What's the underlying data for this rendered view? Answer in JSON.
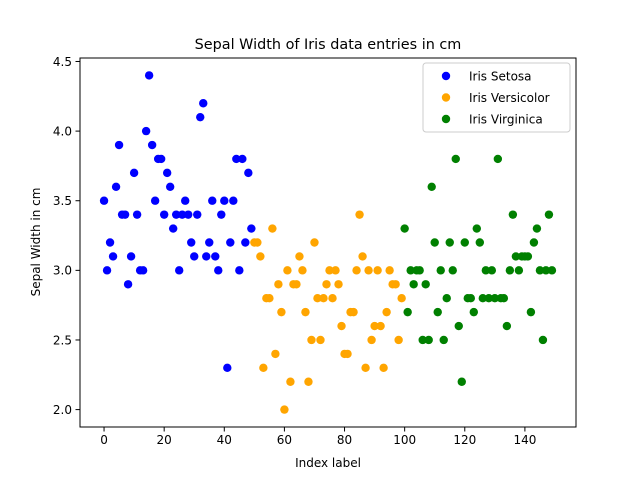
{
  "chart_data": {
    "type": "scatter",
    "title": "Sepal Width of Iris data entries in cm",
    "xlabel": "Index label",
    "ylabel": "Sepal Width in cm",
    "xlim": [
      -8,
      157
    ],
    "ylim": [
      1.875,
      4.525
    ],
    "xticks": [
      0,
      20,
      40,
      60,
      80,
      100,
      120,
      140
    ],
    "yticks": [
      2.0,
      2.5,
      3.0,
      3.5,
      4.0,
      4.5
    ],
    "ytick_labels": [
      "2.0",
      "2.5",
      "3.0",
      "3.5",
      "4.0",
      "4.5"
    ],
    "legend_position": "top-right",
    "grid": false,
    "series": [
      {
        "name": "Iris Setosa",
        "color": "#0000ff",
        "x": [
          0,
          1,
          2,
          3,
          4,
          5,
          6,
          7,
          8,
          9,
          10,
          11,
          12,
          13,
          14,
          15,
          16,
          17,
          18,
          19,
          20,
          21,
          22,
          23,
          24,
          25,
          26,
          27,
          28,
          29,
          30,
          31,
          32,
          33,
          34,
          35,
          36,
          37,
          38,
          39,
          40,
          41,
          42,
          43,
          44,
          45,
          46,
          47,
          48,
          49
        ],
        "y": [
          3.5,
          3.0,
          3.2,
          3.1,
          3.6,
          3.9,
          3.4,
          3.4,
          2.9,
          3.1,
          3.7,
          3.4,
          3.0,
          3.0,
          4.0,
          4.4,
          3.9,
          3.5,
          3.8,
          3.8,
          3.4,
          3.7,
          3.6,
          3.3,
          3.4,
          3.0,
          3.4,
          3.5,
          3.4,
          3.2,
          3.1,
          3.4,
          4.1,
          4.2,
          3.1,
          3.2,
          3.5,
          3.1,
          3.0,
          3.4,
          3.5,
          2.3,
          3.2,
          3.5,
          3.8,
          3.0,
          3.8,
          3.2,
          3.7,
          3.3
        ]
      },
      {
        "name": "Iris Versicolor",
        "color": "#ffa500",
        "x": [
          50,
          51,
          52,
          53,
          54,
          55,
          56,
          57,
          58,
          59,
          60,
          61,
          62,
          63,
          64,
          65,
          66,
          67,
          68,
          69,
          70,
          71,
          72,
          73,
          74,
          75,
          76,
          77,
          78,
          79,
          80,
          81,
          82,
          83,
          84,
          85,
          86,
          87,
          88,
          89,
          90,
          91,
          92,
          93,
          94,
          95,
          96,
          97,
          98,
          99
        ],
        "y": [
          3.2,
          3.2,
          3.1,
          2.3,
          2.8,
          2.8,
          3.3,
          2.4,
          2.9,
          2.7,
          2.0,
          3.0,
          2.2,
          2.9,
          2.9,
          3.1,
          3.0,
          2.7,
          2.2,
          2.5,
          3.2,
          2.8,
          2.5,
          2.8,
          2.9,
          3.0,
          2.8,
          3.0,
          2.9,
          2.6,
          2.4,
          2.4,
          2.7,
          2.7,
          3.0,
          3.4,
          3.1,
          2.3,
          3.0,
          2.5,
          2.6,
          3.0,
          2.6,
          2.3,
          2.7,
          3.0,
          2.9,
          2.9,
          2.5,
          2.8
        ]
      },
      {
        "name": "Iris Virginica",
        "color": "#008000",
        "x": [
          100,
          101,
          102,
          103,
          104,
          105,
          106,
          107,
          108,
          109,
          110,
          111,
          112,
          113,
          114,
          115,
          116,
          117,
          118,
          119,
          120,
          121,
          122,
          123,
          124,
          125,
          126,
          127,
          128,
          129,
          130,
          131,
          132,
          133,
          134,
          135,
          136,
          137,
          138,
          139,
          140,
          141,
          142,
          143,
          144,
          145,
          146,
          147,
          148,
          149
        ],
        "y": [
          3.3,
          2.7,
          3.0,
          2.9,
          3.0,
          3.0,
          2.5,
          2.9,
          2.5,
          3.6,
          3.2,
          2.7,
          3.0,
          2.5,
          2.8,
          3.2,
          3.0,
          3.8,
          2.6,
          2.2,
          3.2,
          2.8,
          2.8,
          2.7,
          3.3,
          3.2,
          2.8,
          3.0,
          2.8,
          3.0,
          2.8,
          3.8,
          2.8,
          2.8,
          2.6,
          3.0,
          3.4,
          3.1,
          3.0,
          3.1,
          3.1,
          3.1,
          2.7,
          3.2,
          3.3,
          3.0,
          2.5,
          3.0,
          3.4,
          3.0
        ]
      }
    ]
  }
}
